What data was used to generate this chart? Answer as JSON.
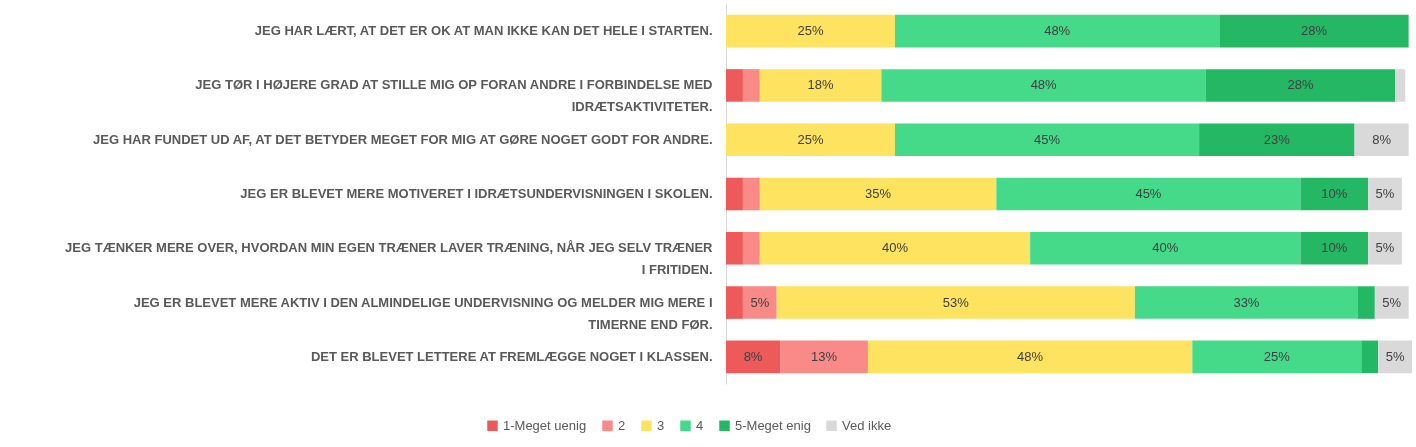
{
  "chart_data": {
    "type": "bar",
    "orientation": "horizontal",
    "stacked": true,
    "legend": "bottom",
    "categories": [
      "JEG HAR LÆRT, AT DET ER OK AT MAN IKKE KAN DET HELE I STARTEN.",
      "JEG TØR I HØJERE GRAD AT STILLE MIG OP FORAN ANDRE I FORBINDELSE MED IDRÆTSAKTIVITETER.",
      "JEG HAR FUNDET UD AF, AT DET BETYDER MEGET FOR MIG AT GØRE NOGET GODT FOR ANDRE.",
      "JEG ER BLEVET MERE MOTIVERET I IDRÆTSUNDERVISNINGEN I SKOLEN.",
      "JEG TÆNKER MERE OVER, HVORDAN MIN EGEN TRÆNER LAVER TRÆNING, NÅR JEG SELV TRÆNER I FRITIDEN.",
      "JEG ER BLEVET MERE AKTIV I DEN ALMINDELIGE UNDERVISNING OG MELDER MIG MERE I TIMERNE END FØR.",
      "DET ER BLEVET LETTERE AT FREMLÆGGE NOGET I KLASSEN."
    ],
    "series": [
      {
        "name": "1-Meget uenig",
        "color": "#ee5a5a",
        "values": [
          null,
          2.5,
          null,
          2.5,
          2.5,
          2.5,
          8
        ],
        "value_labels": [
          null,
          null,
          null,
          null,
          null,
          null,
          "8%"
        ]
      },
      {
        "name": "2",
        "color": "#fa8a88",
        "values": [
          null,
          2.5,
          null,
          2.5,
          2.5,
          5,
          13
        ],
        "value_labels": [
          null,
          null,
          null,
          null,
          null,
          "5%",
          "13%"
        ]
      },
      {
        "name": "3",
        "color": "#fde35f",
        "values": [
          25,
          18,
          25,
          35,
          40,
          53,
          48
        ],
        "value_labels": [
          "25%",
          "18%",
          "25%",
          "35%",
          "40%",
          "53%",
          "48%"
        ]
      },
      {
        "name": "4",
        "color": "#44da8a",
        "values": [
          48,
          48,
          45,
          45,
          40,
          33,
          25
        ],
        "value_labels": [
          "48%",
          "48%",
          "45%",
          "45%",
          "40%",
          "33%",
          "25%"
        ]
      },
      {
        "name": "5-Meget enig",
        "color": "#24b764",
        "values": [
          28,
          28,
          23,
          10,
          10,
          2.5,
          2.5
        ],
        "value_labels": [
          "28%",
          "28%",
          "23%",
          "10%",
          "10%",
          null,
          null
        ]
      },
      {
        "name": "Ved ikke",
        "color": "#d9d9d9",
        "values": [
          null,
          1.5,
          8,
          5,
          5,
          5,
          5
        ],
        "value_labels": [
          null,
          null,
          "8%",
          "5%",
          "5%",
          "5%",
          "5%"
        ]
      }
    ]
  }
}
